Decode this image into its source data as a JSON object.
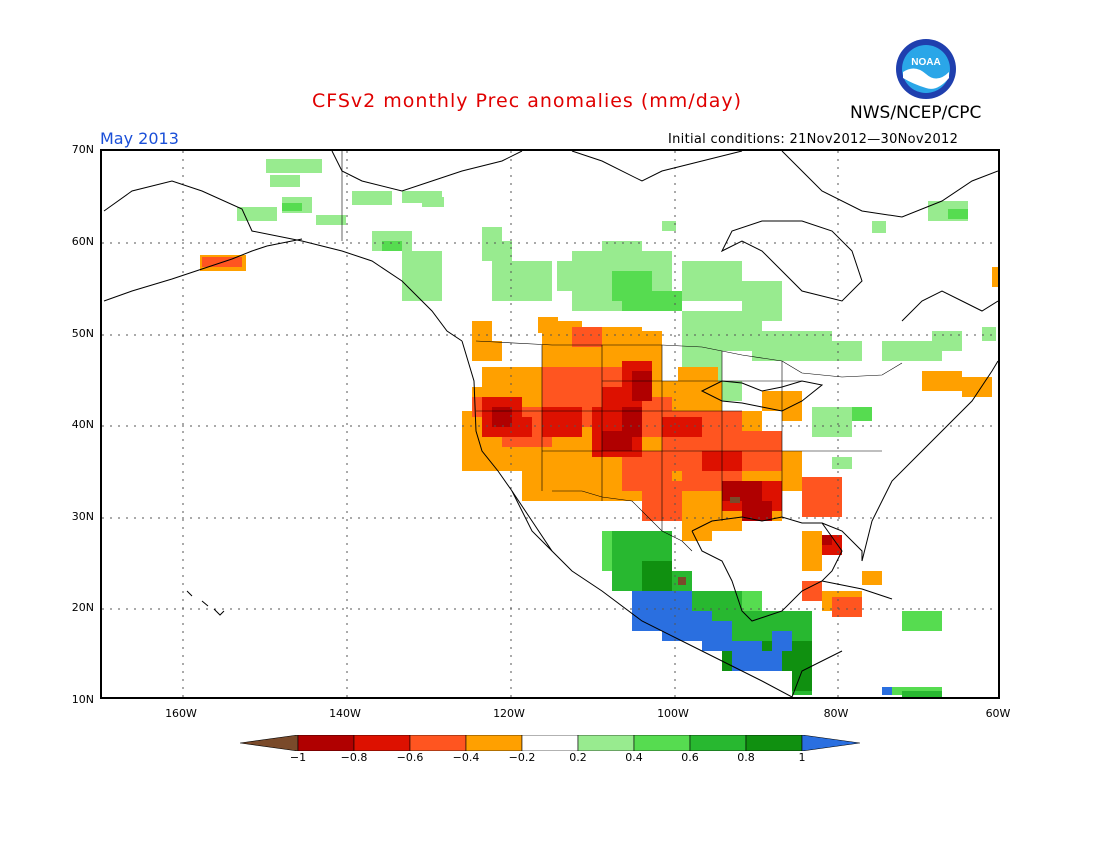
{
  "title": "CFSv2 monthly Prec anomalies (mm/day)",
  "organization": "NWS/NCEP/CPC",
  "logo_text": "NOAA",
  "valid_month": "May 2013",
  "initial_conditions": "Initial conditions: 21Nov2012—30Nov2012",
  "lat_labels": [
    "70N",
    "60N",
    "50N",
    "40N",
    "30N",
    "20N",
    "10N"
  ],
  "lon_labels": [
    "160W",
    "140W",
    "120W",
    "100W",
    "80W",
    "60W"
  ],
  "colorbar": {
    "tick_labels": [
      "−1",
      "−0.8",
      "−0.6",
      "−0.4",
      "−0.2",
      "0.2",
      "0.4",
      "0.6",
      "0.8",
      "1"
    ],
    "colors": [
      "#7a4a2a",
      "#b00000",
      "#dd1100",
      "#ff5520",
      "#ffa000",
      "#ffffff",
      "#98eb8f",
      "#56dc50",
      "#28b830",
      "#109010",
      "#2a6fe0"
    ]
  },
  "anomaly_colors": {
    "dry_strong": "#b00000",
    "dry": "#dd1100",
    "dry_moderate": "#ff5520",
    "dry_weak": "#ffa000",
    "wet_weak": "#98eb8f",
    "wet": "#56dc50",
    "wet_moderate": "#28b830",
    "wet_strong": "#109010",
    "wet_extreme": "#2a6fe0"
  }
}
